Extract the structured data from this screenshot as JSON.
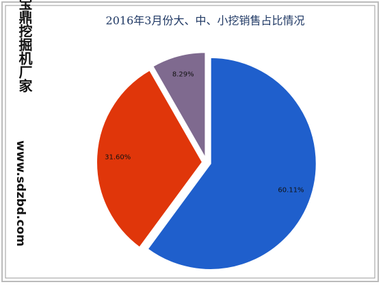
{
  "chart_data": {
    "type": "pie",
    "title": "2016年3月份大、中、小挖销售占比情况",
    "watermark": [
      "宝鼎挖掘机厂家",
      "www.sdzbd.com"
    ],
    "values": [
      60.11,
      31.6,
      8.29
    ],
    "value_labels": [
      "60.11%",
      "31.60%",
      "8.29%"
    ],
    "colors": [
      "#1f5fcc",
      "#e0360a",
      "#7f6a8f"
    ]
  }
}
